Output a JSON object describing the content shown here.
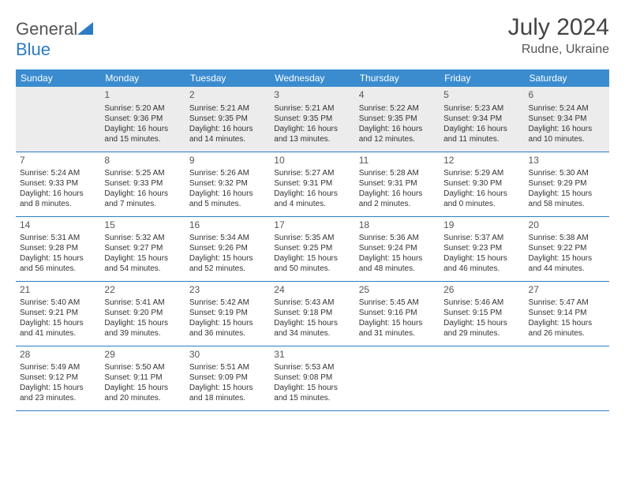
{
  "logo": {
    "text_left": "General",
    "text_right": "Blue"
  },
  "title": "July 2024",
  "location": "Rudne, Ukraine",
  "colors": {
    "header_bg": "#3a8ccf",
    "border": "#2b7cc4",
    "shade": "#ececec",
    "text": "#333333"
  },
  "days_of_week": [
    "Sunday",
    "Monday",
    "Tuesday",
    "Wednesday",
    "Thursday",
    "Friday",
    "Saturday"
  ],
  "weeks": [
    [
      {
        "n": "",
        "sunrise": "",
        "sunset": "",
        "daylight": ""
      },
      {
        "n": "1",
        "sunrise": "5:20 AM",
        "sunset": "9:36 PM",
        "daylight": "16 hours and 15 minutes."
      },
      {
        "n": "2",
        "sunrise": "5:21 AM",
        "sunset": "9:35 PM",
        "daylight": "16 hours and 14 minutes."
      },
      {
        "n": "3",
        "sunrise": "5:21 AM",
        "sunset": "9:35 PM",
        "daylight": "16 hours and 13 minutes."
      },
      {
        "n": "4",
        "sunrise": "5:22 AM",
        "sunset": "9:35 PM",
        "daylight": "16 hours and 12 minutes."
      },
      {
        "n": "5",
        "sunrise": "5:23 AM",
        "sunset": "9:34 PM",
        "daylight": "16 hours and 11 minutes."
      },
      {
        "n": "6",
        "sunrise": "5:24 AM",
        "sunset": "9:34 PM",
        "daylight": "16 hours and 10 minutes."
      }
    ],
    [
      {
        "n": "7",
        "sunrise": "5:24 AM",
        "sunset": "9:33 PM",
        "daylight": "16 hours and 8 minutes."
      },
      {
        "n": "8",
        "sunrise": "5:25 AM",
        "sunset": "9:33 PM",
        "daylight": "16 hours and 7 minutes."
      },
      {
        "n": "9",
        "sunrise": "5:26 AM",
        "sunset": "9:32 PM",
        "daylight": "16 hours and 5 minutes."
      },
      {
        "n": "10",
        "sunrise": "5:27 AM",
        "sunset": "9:31 PM",
        "daylight": "16 hours and 4 minutes."
      },
      {
        "n": "11",
        "sunrise": "5:28 AM",
        "sunset": "9:31 PM",
        "daylight": "16 hours and 2 minutes."
      },
      {
        "n": "12",
        "sunrise": "5:29 AM",
        "sunset": "9:30 PM",
        "daylight": "16 hours and 0 minutes."
      },
      {
        "n": "13",
        "sunrise": "5:30 AM",
        "sunset": "9:29 PM",
        "daylight": "15 hours and 58 minutes."
      }
    ],
    [
      {
        "n": "14",
        "sunrise": "5:31 AM",
        "sunset": "9:28 PM",
        "daylight": "15 hours and 56 minutes."
      },
      {
        "n": "15",
        "sunrise": "5:32 AM",
        "sunset": "9:27 PM",
        "daylight": "15 hours and 54 minutes."
      },
      {
        "n": "16",
        "sunrise": "5:34 AM",
        "sunset": "9:26 PM",
        "daylight": "15 hours and 52 minutes."
      },
      {
        "n": "17",
        "sunrise": "5:35 AM",
        "sunset": "9:25 PM",
        "daylight": "15 hours and 50 minutes."
      },
      {
        "n": "18",
        "sunrise": "5:36 AM",
        "sunset": "9:24 PM",
        "daylight": "15 hours and 48 minutes."
      },
      {
        "n": "19",
        "sunrise": "5:37 AM",
        "sunset": "9:23 PM",
        "daylight": "15 hours and 46 minutes."
      },
      {
        "n": "20",
        "sunrise": "5:38 AM",
        "sunset": "9:22 PM",
        "daylight": "15 hours and 44 minutes."
      }
    ],
    [
      {
        "n": "21",
        "sunrise": "5:40 AM",
        "sunset": "9:21 PM",
        "daylight": "15 hours and 41 minutes."
      },
      {
        "n": "22",
        "sunrise": "5:41 AM",
        "sunset": "9:20 PM",
        "daylight": "15 hours and 39 minutes."
      },
      {
        "n": "23",
        "sunrise": "5:42 AM",
        "sunset": "9:19 PM",
        "daylight": "15 hours and 36 minutes."
      },
      {
        "n": "24",
        "sunrise": "5:43 AM",
        "sunset": "9:18 PM",
        "daylight": "15 hours and 34 minutes."
      },
      {
        "n": "25",
        "sunrise": "5:45 AM",
        "sunset": "9:16 PM",
        "daylight": "15 hours and 31 minutes."
      },
      {
        "n": "26",
        "sunrise": "5:46 AM",
        "sunset": "9:15 PM",
        "daylight": "15 hours and 29 minutes."
      },
      {
        "n": "27",
        "sunrise": "5:47 AM",
        "sunset": "9:14 PM",
        "daylight": "15 hours and 26 minutes."
      }
    ],
    [
      {
        "n": "28",
        "sunrise": "5:49 AM",
        "sunset": "9:12 PM",
        "daylight": "15 hours and 23 minutes."
      },
      {
        "n": "29",
        "sunrise": "5:50 AM",
        "sunset": "9:11 PM",
        "daylight": "15 hours and 20 minutes."
      },
      {
        "n": "30",
        "sunrise": "5:51 AM",
        "sunset": "9:09 PM",
        "daylight": "15 hours and 18 minutes."
      },
      {
        "n": "31",
        "sunrise": "5:53 AM",
        "sunset": "9:08 PM",
        "daylight": "15 hours and 15 minutes."
      },
      {
        "n": "",
        "sunrise": "",
        "sunset": "",
        "daylight": ""
      },
      {
        "n": "",
        "sunrise": "",
        "sunset": "",
        "daylight": ""
      },
      {
        "n": "",
        "sunrise": "",
        "sunset": "",
        "daylight": ""
      }
    ]
  ]
}
